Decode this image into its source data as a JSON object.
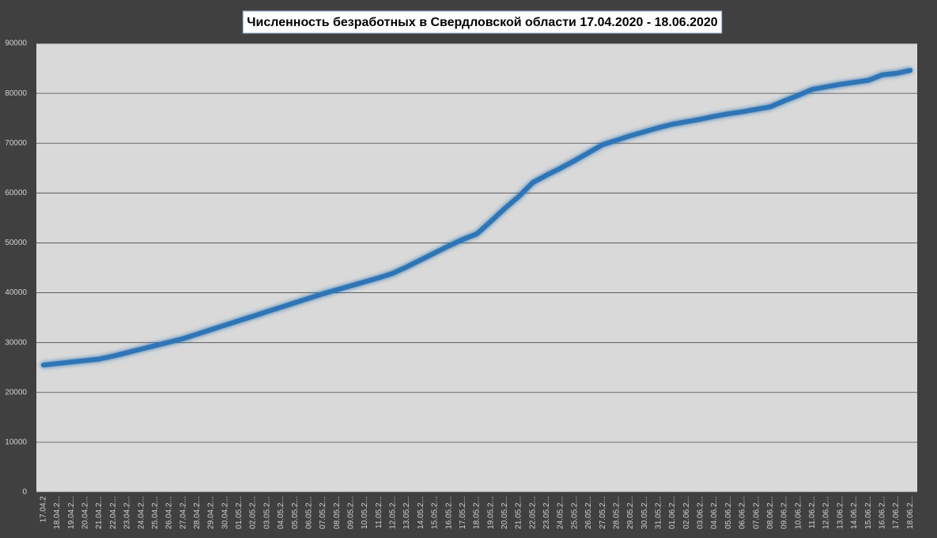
{
  "chart_data": {
    "type": "line",
    "title": "Численность безработных в Свердловской области 17.04.2020 - 18.06.2020",
    "categories": [
      "17.04.2",
      "18.04.2...",
      "19.04.2...",
      "20.04.2...",
      "21.04.2...",
      "22.04.2...",
      "23.04.2...",
      "24.04.2...",
      "25.04.2...",
      "26.04.2...",
      "27.04.2...",
      "28.04.2...",
      "29.04.2...",
      "30.04.2...",
      "01.05.2...",
      "02.05.2...",
      "03.05.2...",
      "04.05.2...",
      "05.05.2...",
      "06.05.2...",
      "07.05.2...",
      "08.05.2...",
      "09.05.2...",
      "10.05.2...",
      "11.05.2...",
      "12.05.2...",
      "13.05.2...",
      "14.05.2...",
      "15.05.2...",
      "16.05.2...",
      "17.05.2...",
      "18.05.2...",
      "19.05.2...",
      "20.05.2...",
      "21.05.2...",
      "22.05.2...",
      "23.05.2...",
      "24.05.2...",
      "25.05.2...",
      "26.05.2...",
      "27.05.2...",
      "28.05.2...",
      "29.05.2...",
      "30.05.2...",
      "31.05.2...",
      "01.06.2...",
      "02.06.2...",
      "03.06.2...",
      "04.06.2...",
      "05.06.2...",
      "06.06.2...",
      "07.06.2...",
      "08.06.2...",
      "09.06.2...",
      "10.06.2...",
      "11.06.2...",
      "12.06.2...",
      "13.06.2...",
      "14.06.2...",
      "15.06.2...",
      "16.06.2...",
      "17.06.2...",
      "18.06.2..."
    ],
    "values": [
      25500,
      25800,
      26100,
      26400,
      26700,
      27300,
      28000,
      28700,
      29400,
      30100,
      30800,
      31700,
      32600,
      33500,
      34400,
      35300,
      36200,
      37100,
      38000,
      38900,
      39800,
      40600,
      41400,
      42200,
      43000,
      43900,
      45200,
      46600,
      48000,
      49400,
      50700,
      51800,
      54300,
      56900,
      59300,
      62100,
      63600,
      65000,
      66500,
      68100,
      69700,
      70600,
      71500,
      72300,
      73100,
      73800,
      74300,
      74800,
      75400,
      75900,
      76300,
      76800,
      77300,
      78500,
      79600,
      80800,
      81300,
      81800,
      82200,
      82600,
      83700,
      84000,
      84600
    ],
    "color": "#2e75b6",
    "ylim": [
      0,
      90000
    ],
    "yticks": [
      0,
      10000,
      20000,
      30000,
      40000,
      50000,
      60000,
      70000,
      80000,
      90000
    ],
    "grid": true
  }
}
